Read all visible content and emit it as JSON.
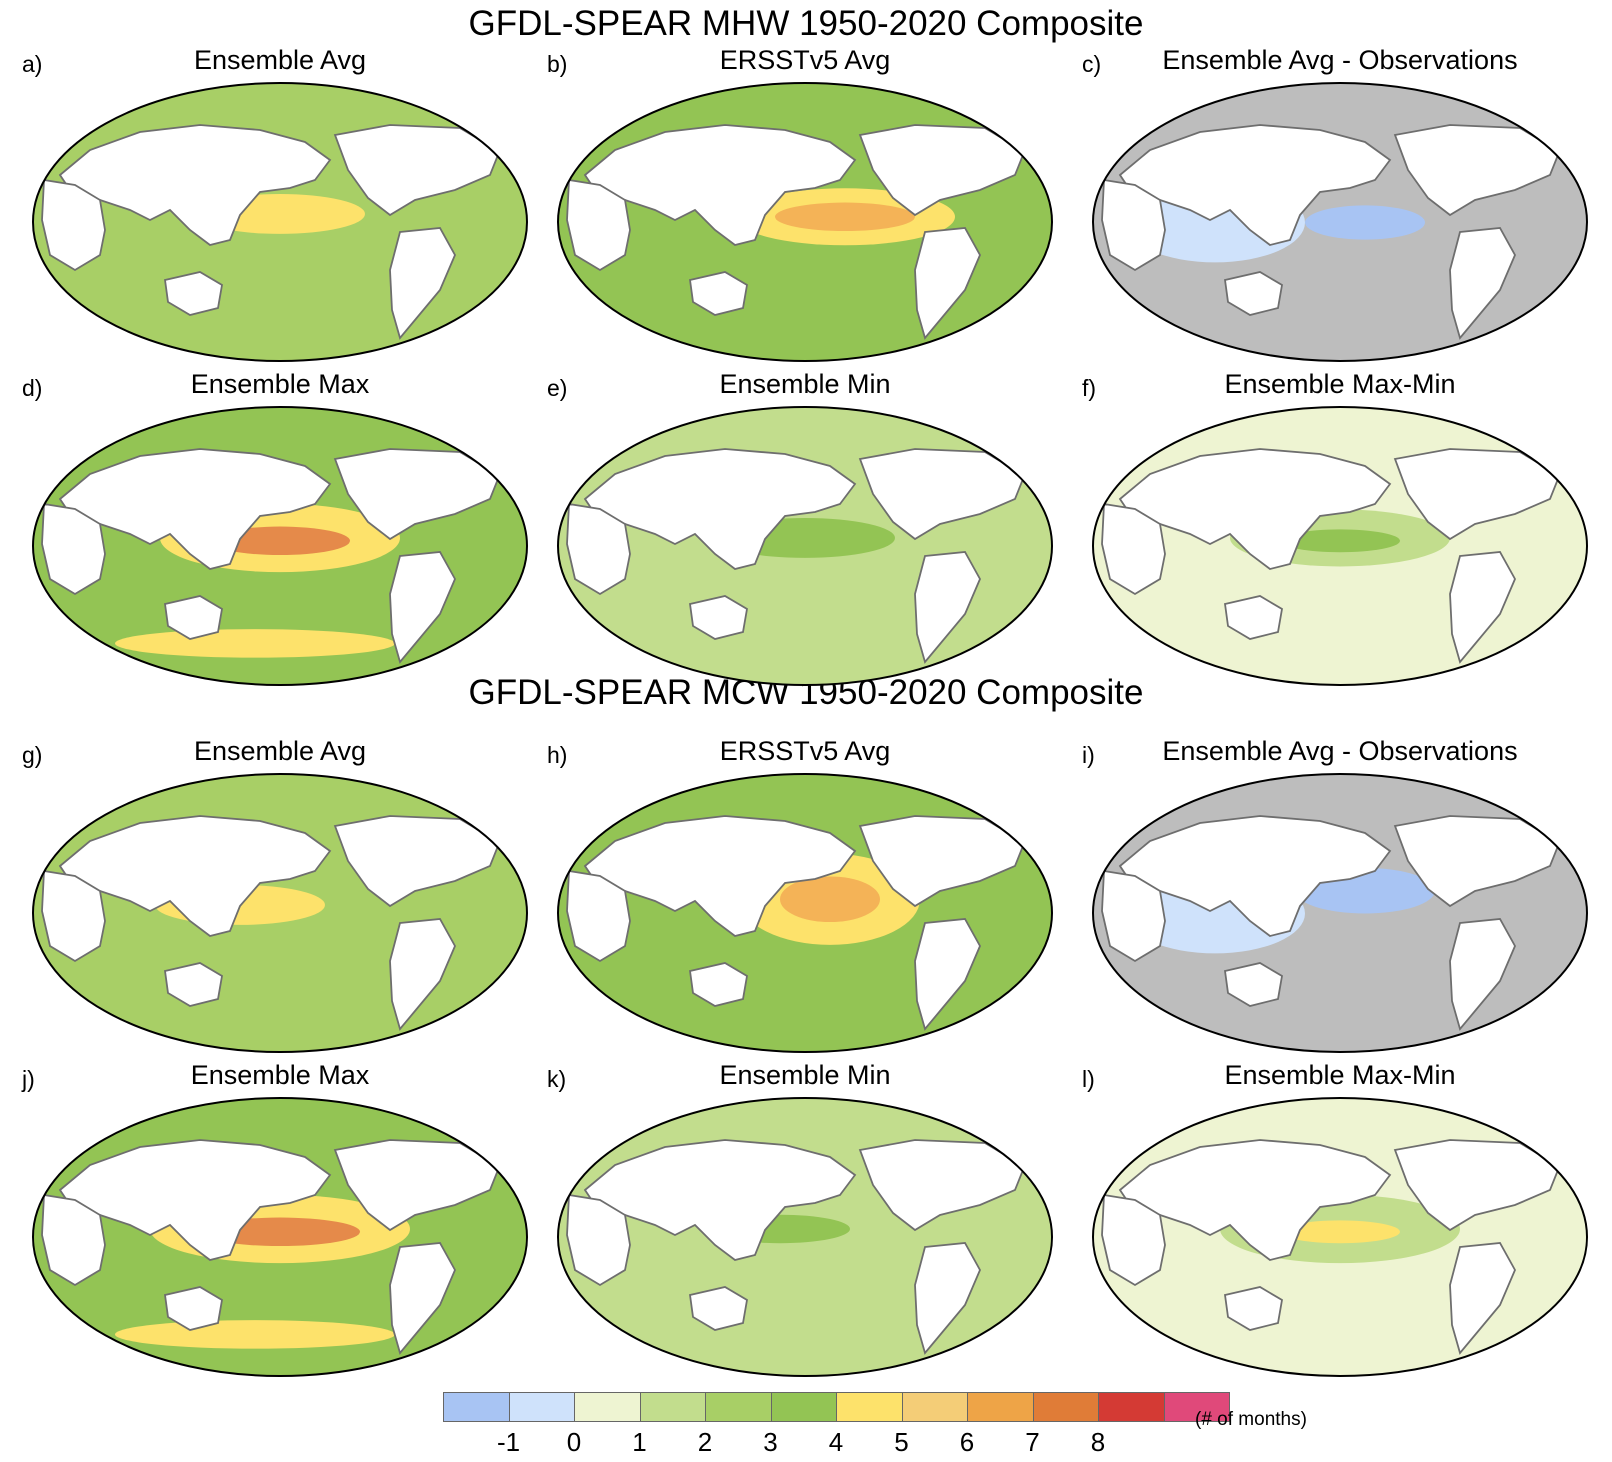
{
  "figure": {
    "section_titles": [
      "GFDL-SPEAR MHW 1950-2020 Composite",
      "GFDL-SPEAR MCW 1950-2020 Composite"
    ],
    "panels": [
      {
        "letter": "a)",
        "title": "Ensemble Avg",
        "base": "#a8cf66",
        "bands": [
          [
            "#fde26b",
            0.5,
            0.47,
            0.17,
            0.07
          ]
        ]
      },
      {
        "letter": "b)",
        "title": "ERSSTv5 Avg",
        "base": "#93c454",
        "bands": [
          [
            "#fde26b",
            0.58,
            0.48,
            0.22,
            0.1
          ],
          [
            "#f4b357",
            0.58,
            0.48,
            0.14,
            0.05
          ]
        ]
      },
      {
        "letter": "c)",
        "title": "Ensemble Avg - Observations",
        "base": "#bdbdbd",
        "bands": [
          [
            "#cfe2fb",
            0.25,
            0.5,
            0.18,
            0.14
          ],
          [
            "#a8c4f3",
            0.55,
            0.5,
            0.12,
            0.06
          ]
        ]
      },
      {
        "letter": "d)",
        "title": "Ensemble Max",
        "base": "#93c454",
        "bands": [
          [
            "#fde26b",
            0.5,
            0.47,
            0.24,
            0.12
          ],
          [
            "#e58a4a",
            0.5,
            0.48,
            0.14,
            0.05
          ],
          [
            "#fde26b",
            0.45,
            0.84,
            0.28,
            0.05
          ]
        ]
      },
      {
        "letter": "e)",
        "title": "Ensemble Min",
        "base": "#c2dd8d",
        "bands": [
          [
            "#93c454",
            0.5,
            0.47,
            0.18,
            0.07
          ]
        ]
      },
      {
        "letter": "f)",
        "title": "Ensemble Max-Min",
        "base": "#eef4d2",
        "bands": [
          [
            "#c2dd8d",
            0.5,
            0.47,
            0.22,
            0.1
          ],
          [
            "#93c454",
            0.5,
            0.48,
            0.12,
            0.04
          ]
        ]
      },
      {
        "letter": "g)",
        "title": "Ensemble Avg",
        "base": "#a8cf66",
        "bands": [
          [
            "#fde26b",
            0.42,
            0.47,
            0.17,
            0.07
          ]
        ]
      },
      {
        "letter": "h)",
        "title": "ERSSTv5 Avg",
        "base": "#93c454",
        "bands": [
          [
            "#fde26b",
            0.55,
            0.45,
            0.18,
            0.16
          ],
          [
            "#f4b357",
            0.55,
            0.45,
            0.1,
            0.08
          ]
        ]
      },
      {
        "letter": "i)",
        "title": "Ensemble Avg - Observations",
        "base": "#bdbdbd",
        "bands": [
          [
            "#cfe2fb",
            0.25,
            0.5,
            0.18,
            0.14
          ],
          [
            "#a8c4f3",
            0.55,
            0.42,
            0.14,
            0.08
          ]
        ]
      },
      {
        "letter": "j)",
        "title": "Ensemble Max",
        "base": "#93c454",
        "bands": [
          [
            "#fde26b",
            0.5,
            0.47,
            0.26,
            0.12
          ],
          [
            "#e58a4a",
            0.5,
            0.48,
            0.16,
            0.05
          ],
          [
            "#fde26b",
            0.45,
            0.84,
            0.28,
            0.05
          ]
        ]
      },
      {
        "letter": "k)",
        "title": "Ensemble Min",
        "base": "#c2dd8d",
        "bands": [
          [
            "#93c454",
            0.45,
            0.47,
            0.14,
            0.05
          ]
        ]
      },
      {
        "letter": "l)",
        "title": "Ensemble Max-Min",
        "base": "#eef4d2",
        "bands": [
          [
            "#c2dd8d",
            0.5,
            0.47,
            0.24,
            0.12
          ],
          [
            "#fde26b",
            0.5,
            0.48,
            0.12,
            0.04
          ]
        ]
      }
    ]
  },
  "legend": {
    "colors": [
      "#a8c4f3",
      "#cfe2fb",
      "#eef4d2",
      "#c2dd8d",
      "#a8cf66",
      "#93c454",
      "#fde26b",
      "#f4cd77",
      "#eea447",
      "#e07c37",
      "#d43a34",
      "#e0497a"
    ],
    "ticks": [
      "-1",
      "0",
      "1",
      "2",
      "3",
      "4",
      "5",
      "6",
      "7",
      "8"
    ],
    "unit": "(# of months)"
  }
}
